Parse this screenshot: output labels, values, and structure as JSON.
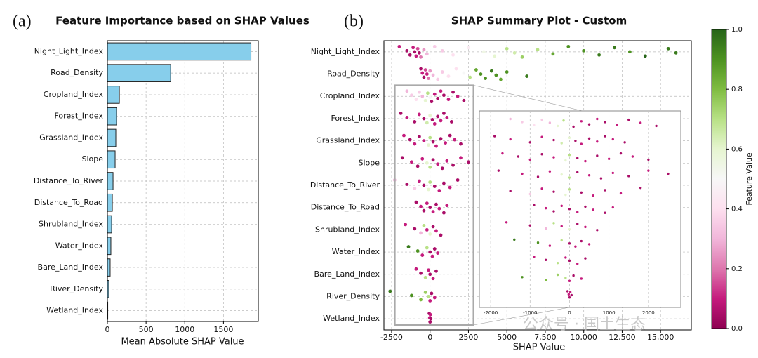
{
  "chart_data": [
    {
      "type": "barh",
      "panel_label": "(a)",
      "title": "Feature Importance based on SHAP Values",
      "x_label": "Mean Absolute SHAP Value",
      "categories": [
        "Night_Light_Index",
        "Road_Density",
        "Cropland_Index",
        "Forest_Index",
        "Grassland_Index",
        "Slope",
        "Distance_To_River",
        "Distance_To_Road",
        "Shrubland_Index",
        "Water_Index",
        "Bare_Land_Index",
        "River_Density",
        "Wetland_Index"
      ],
      "values": [
        1855,
        818,
        155,
        118,
        109,
        100,
        73,
        64,
        55,
        45,
        36,
        18,
        5
      ],
      "color": "#87ceeb",
      "edge_color": "#222222",
      "xlim": [
        0,
        1950
      ],
      "xticks": [
        0,
        500,
        1000,
        1500
      ],
      "grid": true
    },
    {
      "type": "beeswarm",
      "panel_label": "(b)",
      "title": "SHAP Summary Plot - Custom",
      "x_label": "SHAP Value",
      "categories": [
        "Night_Light_Index",
        "Road_Density",
        "Cropland_Index",
        "Forest_Index",
        "Grassland_Index",
        "Slope",
        "Distance_To_River",
        "Distance_To_Road",
        "Shrubland_Index",
        "Water_Index",
        "Bare_Land_Index",
        "River_Density",
        "Wetland_Index"
      ],
      "points": [
        {
          "shap": [
            -2000,
            -1500,
            -1300,
            -1100,
            -1000,
            -900,
            -800,
            -700,
            -600,
            -400,
            -200,
            300,
            800,
            1500,
            2500,
            3500,
            4200,
            5000,
            5500,
            6000,
            7000,
            8000,
            9000,
            10000,
            11000,
            12000,
            13000,
            14000,
            15500,
            16000
          ],
          "feature_value": [
            0.1,
            0.05,
            0.05,
            0.1,
            0.05,
            0.1,
            0.15,
            0.05,
            0.2,
            0.25,
            0.3,
            0.35,
            0.35,
            0.4,
            0.45,
            0.55,
            0.6,
            0.7,
            0.65,
            0.75,
            0.7,
            0.85,
            0.9,
            0.9,
            0.95,
            0.95,
            0.9,
            1.0,
            0.95,
            0.95
          ]
        },
        {
          "shap": [
            -600,
            -500,
            -400,
            -300,
            -200,
            -100,
            0,
            200,
            500,
            800,
            1200,
            1700,
            2200,
            2600,
            3000,
            3300,
            3600,
            4000,
            4300,
            4600,
            5000,
            6300
          ],
          "feature_value": [
            0.05,
            0.1,
            0.05,
            0.15,
            0.1,
            0.2,
            0.25,
            0.3,
            0.35,
            0.35,
            0.4,
            0.4,
            0.5,
            0.7,
            0.85,
            0.9,
            0.9,
            0.95,
            0.9,
            0.85,
            0.9,
            0.95
          ]
        },
        {
          "shap": [
            -1500,
            -1200,
            -900,
            -700,
            -500,
            -300,
            -150,
            0,
            100,
            300,
            500,
            700,
            900,
            1200,
            1500,
            1800,
            2200
          ],
          "feature_value": [
            0.3,
            0.35,
            0.4,
            0.35,
            0.3,
            0.6,
            0.7,
            0.5,
            0.05,
            0.1,
            0.05,
            0.1,
            0.05,
            0.1,
            0.05,
            0.1,
            0.05
          ]
        },
        {
          "shap": [
            -1900,
            -1500,
            -1000,
            -700,
            -400,
            -200,
            0,
            150,
            300,
            500,
            700,
            900,
            1100,
            1400
          ],
          "feature_value": [
            0.05,
            0.1,
            0.05,
            0.1,
            0.05,
            0.65,
            0.6,
            0.05,
            0.1,
            0.05,
            0.1,
            0.05,
            0.1,
            0.05
          ]
        },
        {
          "shap": [
            -1700,
            -1300,
            -1000,
            -700,
            -400,
            -100,
            0,
            200,
            400,
            700,
            1000,
            1300,
            1600,
            2000
          ],
          "feature_value": [
            0.1,
            0.05,
            0.1,
            0.05,
            0.1,
            0.6,
            0.7,
            0.05,
            0.1,
            0.05,
            0.1,
            0.05,
            0.1,
            0.05
          ]
        },
        {
          "shap": [
            -1800,
            -1200,
            -800,
            -500,
            -200,
            0,
            200,
            500,
            800,
            1100,
            1500,
            2000,
            2500
          ],
          "feature_value": [
            0.05,
            0.1,
            0.05,
            0.1,
            0.6,
            0.7,
            0.05,
            0.1,
            0.05,
            0.1,
            0.05,
            0.1,
            0.05
          ]
        },
        {
          "shap": [
            -2300,
            -1500,
            -1000,
            -700,
            -400,
            -100,
            0,
            300,
            600,
            900,
            1300,
            1800
          ],
          "feature_value": [
            0.3,
            0.05,
            0.35,
            0.1,
            0.05,
            0.6,
            0.7,
            0.05,
            0.1,
            0.05,
            0.1,
            0.05
          ]
        },
        {
          "shap": [
            -900,
            -600,
            -400,
            -200,
            0,
            200,
            400,
            600,
            900,
            1100
          ],
          "feature_value": [
            0.05,
            0.1,
            0.05,
            0.1,
            0.05,
            0.1,
            0.05,
            0.1,
            0.05,
            0.1
          ]
        },
        {
          "shap": [
            -1600,
            -1000,
            -600,
            -400,
            -200,
            0,
            200,
            400,
            700
          ],
          "feature_value": [
            0.1,
            0.05,
            0.3,
            0.7,
            0.1,
            0.6,
            0.05,
            0.1,
            0.05
          ]
        },
        {
          "shap": [
            -1400,
            -800,
            -500,
            -200,
            0,
            150,
            300,
            500
          ],
          "feature_value": [
            0.95,
            0.9,
            0.1,
            0.7,
            0.05,
            0.1,
            0.05,
            0.1
          ]
        },
        {
          "shap": [
            -900,
            -600,
            -300,
            -100,
            0,
            200,
            400
          ],
          "feature_value": [
            0.1,
            0.05,
            0.7,
            0.1,
            0.05,
            0.1,
            0.05
          ]
        },
        {
          "shap": [
            -2600,
            -1200,
            -600,
            -300,
            -100,
            0,
            100,
            300
          ],
          "feature_value": [
            0.95,
            0.9,
            0.8,
            0.75,
            0.7,
            0.1,
            0.05,
            0.1
          ]
        },
        {
          "shap": [
            -50,
            -20,
            0,
            20,
            50
          ],
          "feature_value": [
            0.05,
            0.1,
            0.05,
            0.1,
            0.05
          ]
        }
      ],
      "xlim": [
        -3000,
        17000
      ],
      "xticks": [
        -2500,
        0,
        2500,
        5000,
        {
          "value": 7500,
          "label": "7,500"
        },
        {
          "value": 10000,
          "label": "10,000"
        },
        {
          "value": 12500,
          "label": "12,500"
        },
        {
          "value": 15000,
          "label": "15,000"
        }
      ],
      "grid": true,
      "inset": {
        "xlim": [
          -2286,
          2821
        ],
        "xticks": [
          -2000,
          -1000,
          0,
          1000,
          2000
        ],
        "first_row": 2
      },
      "colorbar": {
        "label": "Feature Value",
        "lim": [
          0,
          1
        ],
        "ticks": [
          {
            "value": 0,
            "label": "0.0"
          },
          {
            "value": 0.2,
            "label": "0.2"
          },
          {
            "value": 0.4,
            "label": "0.4"
          },
          {
            "value": 0.6,
            "label": "0.6"
          },
          {
            "value": 0.8,
            "label": "0.8"
          },
          {
            "value": 1,
            "label": "1.0"
          }
        ],
        "colormap": [
          "#8e0152",
          "#c51b7d",
          "#de77ae",
          "#f1b6da",
          "#fde0ef",
          "#f7f7f7",
          "#e6f5d0",
          "#b8e186",
          "#7fbc41",
          "#4d9221",
          "#276419"
        ]
      },
      "watermark": "公众号 · 国土生态"
    }
  ]
}
